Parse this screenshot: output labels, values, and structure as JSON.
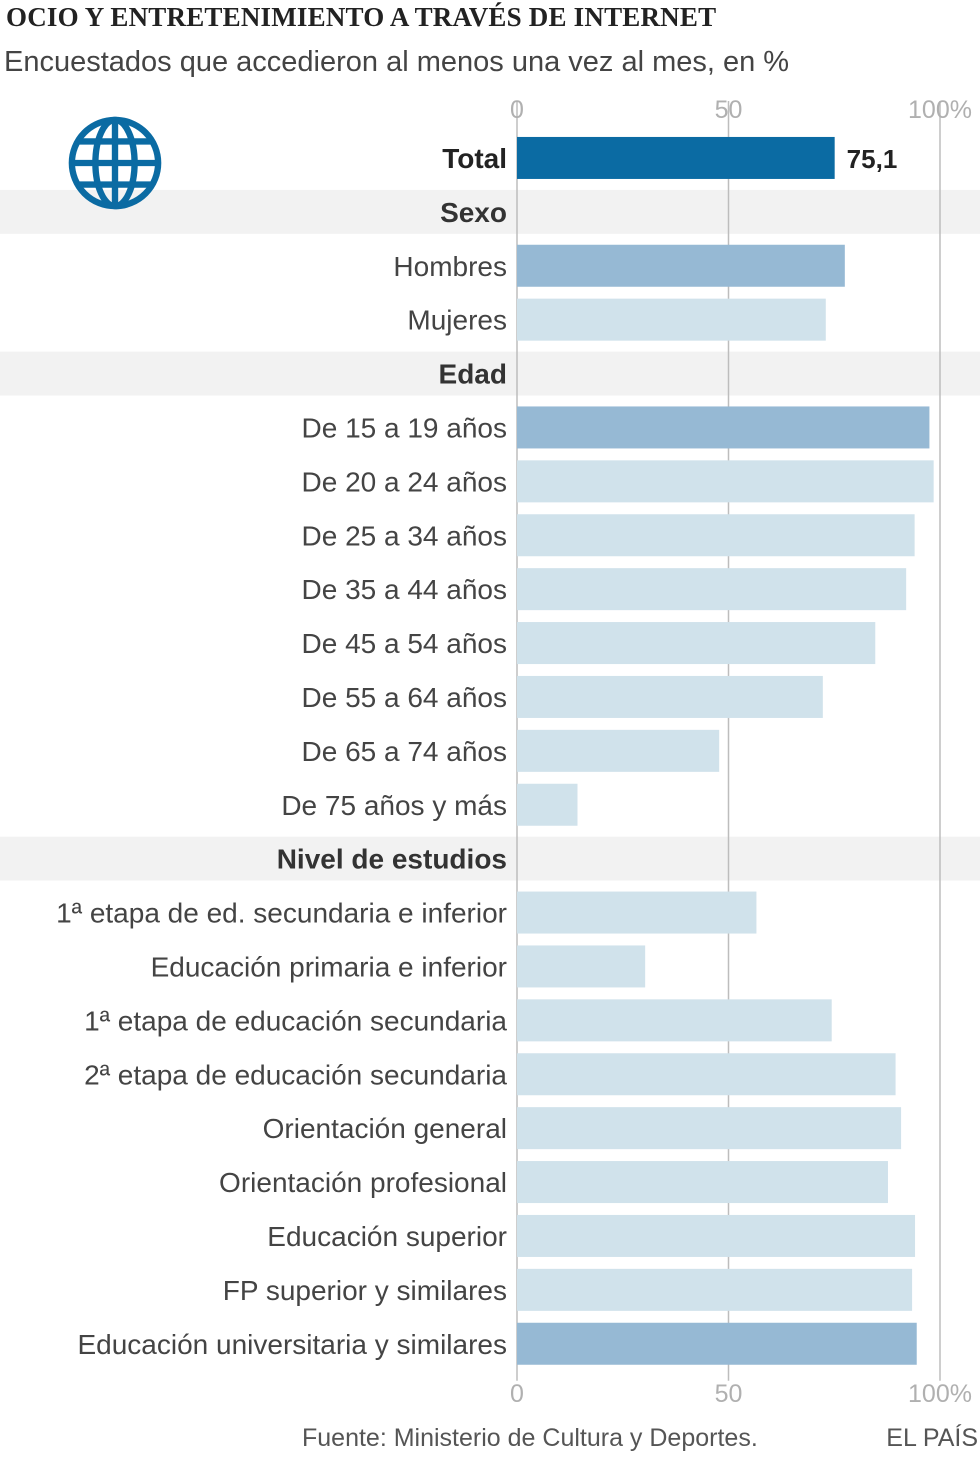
{
  "chart_data": {
    "type": "bar",
    "orientation": "horizontal",
    "title": "OCIO Y ENTRETENIMIENTO A TRAVÉS DE INTERNET",
    "subtitle": "Encuestados que accedieron al menos una vez al mes, en %",
    "xlim": [
      0,
      100
    ],
    "ticks": [
      "0",
      "50",
      "100%"
    ],
    "tick_values": [
      0,
      50,
      100
    ],
    "grid": true,
    "rows": [
      {
        "kind": "bar",
        "label": "Total",
        "value": 75.1,
        "value_label": "75,1",
        "style": "total"
      },
      {
        "kind": "section",
        "label": "Sexo"
      },
      {
        "kind": "bar",
        "label": "Hombres",
        "value": 77.5,
        "style": "highlight"
      },
      {
        "kind": "bar",
        "label": "Mujeres",
        "value": 73.0,
        "style": "normal"
      },
      {
        "kind": "section",
        "label": "Edad"
      },
      {
        "kind": "bar",
        "label": "De 15 a 19 años",
        "value": 97.5,
        "style": "highlight"
      },
      {
        "kind": "bar",
        "label": "De 20 a 24 años",
        "value": 98.5,
        "style": "normal"
      },
      {
        "kind": "bar",
        "label": "De 25 a 34 años",
        "value": 94.0,
        "style": "normal"
      },
      {
        "kind": "bar",
        "label": "De 35 a 44 años",
        "value": 92.0,
        "style": "normal"
      },
      {
        "kind": "bar",
        "label": "De 45 a 54 años",
        "value": 84.7,
        "style": "normal"
      },
      {
        "kind": "bar",
        "label": "De 55 a 64 años",
        "value": 72.3,
        "style": "normal"
      },
      {
        "kind": "bar",
        "label": "De 65 a 74 años",
        "value": 47.8,
        "style": "normal"
      },
      {
        "kind": "bar",
        "label": "De 75 años y más",
        "value": 14.3,
        "style": "normal"
      },
      {
        "kind": "section",
        "label": "Nivel de estudios"
      },
      {
        "kind": "bar",
        "label": "1ª etapa de ed. secundaria e inferior",
        "value": 56.6,
        "style": "normal"
      },
      {
        "kind": "bar",
        "label": "Educación primaria e inferior",
        "value": 30.3,
        "style": "normal"
      },
      {
        "kind": "bar",
        "label": "1ª etapa de educación secundaria",
        "value": 74.4,
        "style": "normal"
      },
      {
        "kind": "bar",
        "label": "2ª etapa de educación secundaria",
        "value": 89.5,
        "style": "normal"
      },
      {
        "kind": "bar",
        "label": "Orientación general",
        "value": 90.8,
        "style": "normal"
      },
      {
        "kind": "bar",
        "label": "Orientación profesional",
        "value": 87.7,
        "style": "normal"
      },
      {
        "kind": "bar",
        "label": "Educación superior",
        "value": 94.1,
        "style": "normal"
      },
      {
        "kind": "bar",
        "label": "FP superior y similares",
        "value": 93.4,
        "style": "normal"
      },
      {
        "kind": "bar",
        "label": "Educación universitaria y similares",
        "value": 94.5,
        "style": "highlight"
      }
    ]
  },
  "colors": {
    "total": "#0b6ba3",
    "highlight": "#96b9d4",
    "normal": "#d0e2eb",
    "section_band": "#f2f2f2",
    "grid": "#bdbdbd",
    "tick_text": "#b0b0b0"
  },
  "icon": "globe-icon",
  "footer": {
    "source": "Fuente: Ministerio de Cultura y Deportes.",
    "brand": "EL PAÍS"
  }
}
